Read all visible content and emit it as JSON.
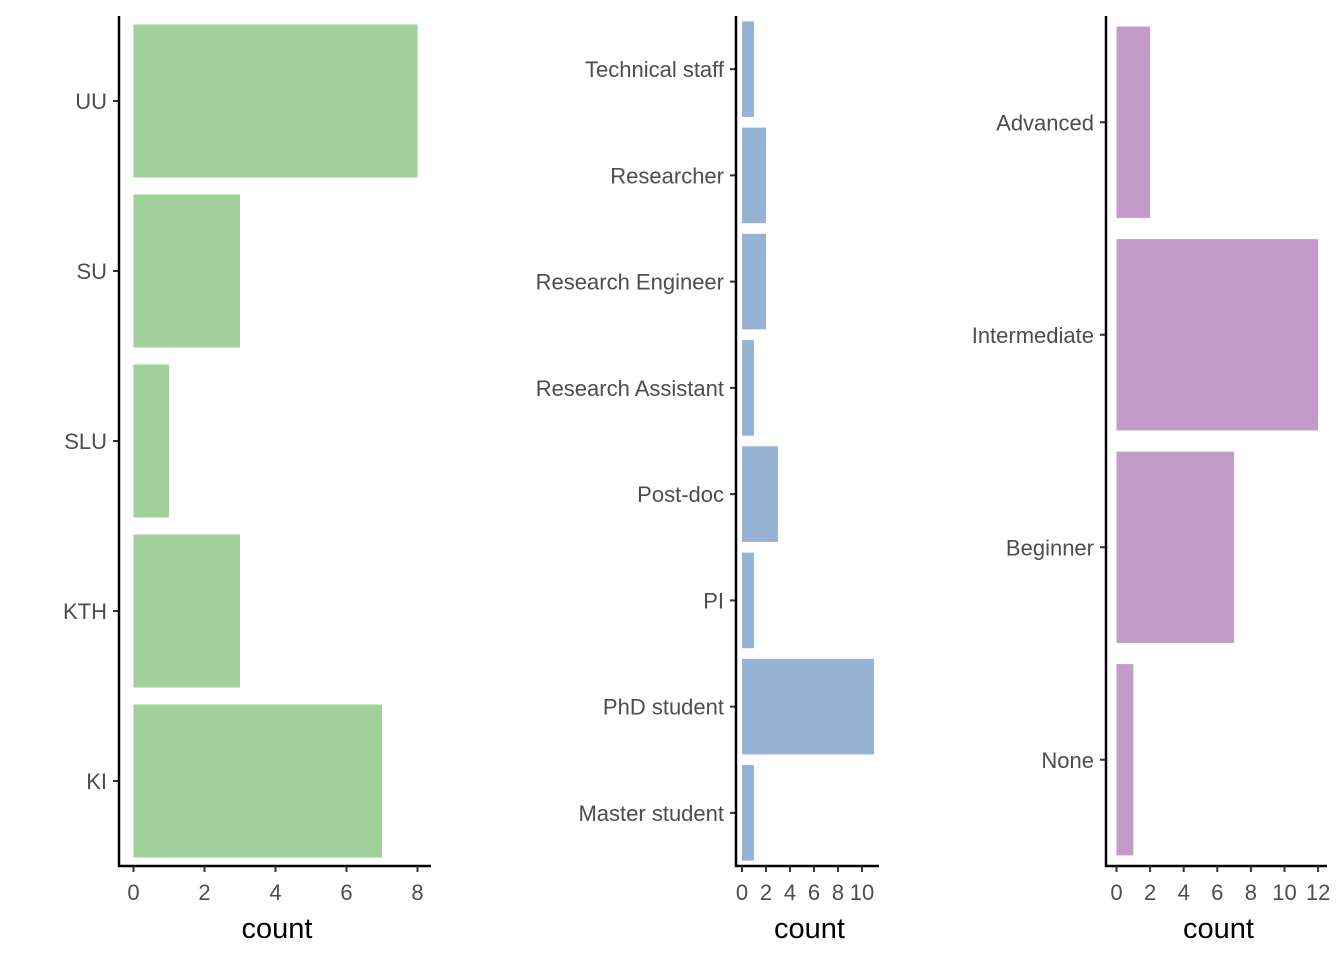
{
  "chart_data": [
    {
      "type": "bar",
      "orientation": "horizontal",
      "categories": [
        "UU",
        "SU",
        "SLU",
        "KTH",
        "KI"
      ],
      "values": [
        8,
        3,
        1,
        3,
        7
      ],
      "xlabel": "count",
      "ylabel": "",
      "xlim": [
        0,
        8.4
      ],
      "xticks": [
        0,
        2,
        4,
        6,
        8
      ],
      "color": "#a0d19b",
      "grid": false
    },
    {
      "type": "bar",
      "orientation": "horizontal",
      "categories": [
        "Technical staff",
        "Researcher",
        "Research Engineer",
        "Research Assistant",
        "Post-doc",
        "PI",
        "PhD student",
        "Master student"
      ],
      "values": [
        1,
        2,
        2,
        1,
        3,
        1,
        11,
        1
      ],
      "xlabel": "count",
      "ylabel": "",
      "xlim": [
        0,
        11.55
      ],
      "xticks": [
        0,
        2,
        4,
        6,
        8,
        10
      ],
      "color": "#97b3d4",
      "grid": false
    },
    {
      "type": "bar",
      "orientation": "horizontal",
      "categories": [
        "Advanced",
        "Intermediate",
        "Beginner",
        "None"
      ],
      "values": [
        2,
        12,
        7,
        1
      ],
      "xlabel": "count",
      "ylabel": "",
      "xlim": [
        0,
        12.6
      ],
      "xticks": [
        0,
        2,
        4,
        6,
        8,
        10,
        12
      ],
      "color": "#c39bc8",
      "grid": false
    }
  ]
}
